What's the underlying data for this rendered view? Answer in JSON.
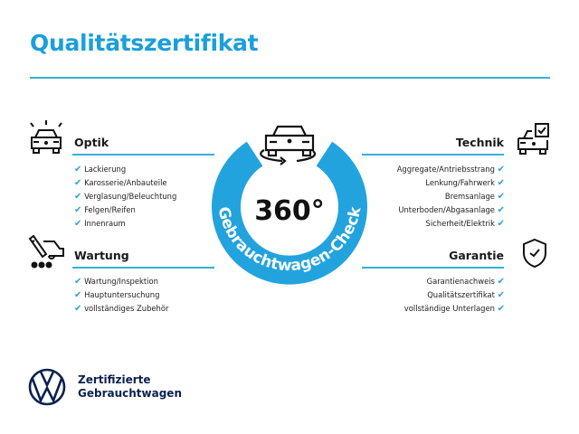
{
  "title": "Qualitätszertifikat",
  "center": {
    "value": "360°",
    "ring_text": "Gebrauchtwagen-Check"
  },
  "sections": {
    "optik": {
      "heading": "Optik",
      "icon": "car-lights-icon",
      "items": [
        "Lackierung",
        "Karosserie/Anbauteile",
        "Verglasung/Beleuchtung",
        "Felgen/Reifen",
        "Innenraum"
      ]
    },
    "wartung": {
      "heading": "Wartung",
      "icon": "service-tool-car-icon",
      "items": [
        "Wartung/Inspektion",
        "Hauptuntersuchung",
        "vollständiges Zubehör"
      ]
    },
    "technik": {
      "heading": "Technik",
      "icon": "car-checklist-icon",
      "items": [
        "Aggregate/Antriebsstrang",
        "Lenkung/Fahrwerk",
        "Bremsanlage",
        "Unterboden/Abgasanlage",
        "Sicherheit/Elektrik"
      ]
    },
    "garantie": {
      "heading": "Garantie",
      "icon": "shield-check-icon",
      "items": [
        "Garantienachweis",
        "Qualitätszertifikat",
        "vollständige Unterlagen"
      ]
    }
  },
  "brand": {
    "line1": "Zertifizierte",
    "line2": "Gebrauchtwagen"
  },
  "check_mark": "✔",
  "colors": {
    "accent": "#1a9fd9",
    "ring": "#22a3de",
    "brand_navy": "#0b2150"
  }
}
